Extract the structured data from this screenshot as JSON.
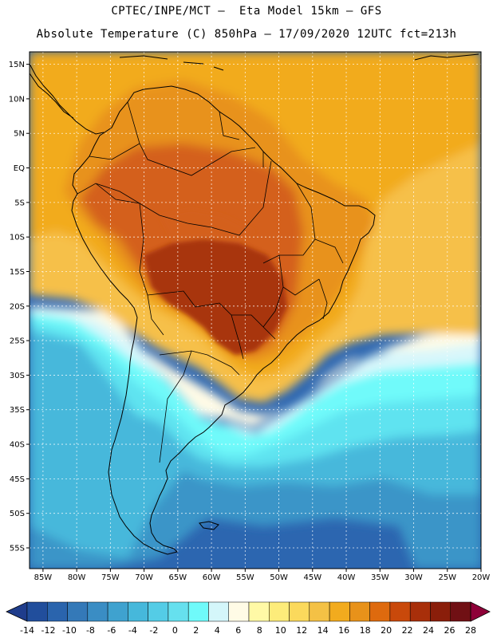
{
  "header": {
    "line1": "CPTEC/INPE/MCT —  Eta Model 15km — GFS",
    "line2": "Absolute Temperature (C) 850hPa — 17/09/2020 12UTC fct=213h"
  },
  "lat_ticks": [
    {
      "lat": 15,
      "label": "15N"
    },
    {
      "lat": 10,
      "label": "10N"
    },
    {
      "lat": 5,
      "label": "5N"
    },
    {
      "lat": 0,
      "label": "EQ"
    },
    {
      "lat": -5,
      "label": "5S"
    },
    {
      "lat": -10,
      "label": "10S"
    },
    {
      "lat": -15,
      "label": "15S"
    },
    {
      "lat": -20,
      "label": "20S"
    },
    {
      "lat": -25,
      "label": "25S"
    },
    {
      "lat": -30,
      "label": "30S"
    },
    {
      "lat": -35,
      "label": "35S"
    },
    {
      "lat": -40,
      "label": "40S"
    },
    {
      "lat": -45,
      "label": "45S"
    },
    {
      "lat": -50,
      "label": "50S"
    },
    {
      "lat": -55,
      "label": "55S"
    }
  ],
  "lon_ticks": [
    {
      "lon": -85,
      "label": "85W"
    },
    {
      "lon": -80,
      "label": "80W"
    },
    {
      "lon": -75,
      "label": "75W"
    },
    {
      "lon": -70,
      "label": "70W"
    },
    {
      "lon": -65,
      "label": "65W"
    },
    {
      "lon": -60,
      "label": "60W"
    },
    {
      "lon": -55,
      "label": "55W"
    },
    {
      "lon": -50,
      "label": "50W"
    },
    {
      "lon": -45,
      "label": "45W"
    },
    {
      "lon": -40,
      "label": "40W"
    },
    {
      "lon": -35,
      "label": "35W"
    },
    {
      "lon": -30,
      "label": "30W"
    },
    {
      "lon": -25,
      "label": "25W"
    },
    {
      "lon": -20,
      "label": "20W"
    }
  ],
  "colorbar": {
    "labels": [
      "-14",
      "-12",
      "-10",
      "-8",
      "-6",
      "-4",
      "-2",
      "0",
      "2",
      "4",
      "6",
      "8",
      "10",
      "12",
      "14",
      "16",
      "18",
      "20",
      "22",
      "24",
      "26",
      "28"
    ],
    "colors": [
      "#1f3d8c",
      "#214e9c",
      "#2a64ad",
      "#3479b8",
      "#3a8dc4",
      "#3fa2cf",
      "#46b8db",
      "#54cce6",
      "#66e0ee",
      "#6ffafa",
      "#d4f6fa",
      "#fffbe6",
      "#fff9a6",
      "#fdec7a",
      "#fbd95c",
      "#f4c145",
      "#f2ab1e",
      "#e8921a",
      "#de6a0e",
      "#c9490b",
      "#a82f0a",
      "#8a1e0a",
      "#701014",
      "#8e0038"
    ]
  },
  "map_regions": [
    {
      "name": "ocean-far-south",
      "temp_c": -8,
      "color": "#2c66b0"
    },
    {
      "name": "ocean-south",
      "temp_c": -4,
      "color": "#3a95c8"
    },
    {
      "name": "ocean-south-mid",
      "temp_c": -1,
      "color": "#46b8db"
    },
    {
      "name": "cold-front-band",
      "temp_c": 2,
      "color": "#5ee3f0"
    },
    {
      "name": "cyan-band",
      "temp_c": 5,
      "color": "#6ffafa"
    },
    {
      "name": "pale-band",
      "temp_c": 7,
      "color": "#d8f7fb"
    },
    {
      "name": "cream-band",
      "temp_c": 9,
      "color": "#fffbe6"
    },
    {
      "name": "tropical-atlantic",
      "temp_c": 15,
      "color": "#f6c04a"
    },
    {
      "name": "north-ocean",
      "temp_c": 18,
      "color": "#f2ab1e"
    },
    {
      "name": "continent-north",
      "temp_c": 20,
      "color": "#e8921a"
    },
    {
      "name": "continent-core",
      "temp_c": 23,
      "color": "#d4601a"
    },
    {
      "name": "heat-core",
      "temp_c": 25,
      "color": "#a8340c"
    }
  ]
}
